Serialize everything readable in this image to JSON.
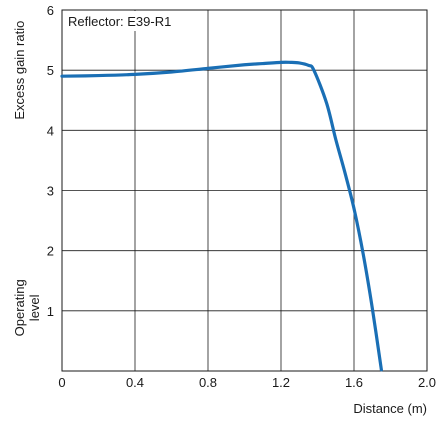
{
  "chart_data": {
    "type": "line",
    "title": "",
    "xlabel": "Distance (m)",
    "ylabel": "Excess gain ratio",
    "xlim": [
      0,
      2.0
    ],
    "ylim": [
      0,
      6
    ],
    "x_ticks": [
      "0",
      "0.4",
      "0.8",
      "1.2",
      "1.6",
      "2.0"
    ],
    "y_ticks": [
      "1",
      "2",
      "3",
      "4",
      "5",
      "6"
    ],
    "grid": true,
    "legend_box": "Reflector: E39-R1",
    "annotation": [
      "Operating",
      "level"
    ],
    "series": [
      {
        "color": "#1a6fb5",
        "x": [
          0,
          0.2,
          0.4,
          0.6,
          0.8,
          1.0,
          1.1,
          1.2,
          1.25,
          1.3,
          1.35,
          1.38,
          1.45,
          1.5,
          1.55,
          1.6,
          1.65,
          1.7,
          1.75
        ],
        "y": [
          4.9,
          4.91,
          4.93,
          4.97,
          5.03,
          5.09,
          5.11,
          5.13,
          5.13,
          5.12,
          5.08,
          5.0,
          4.45,
          3.85,
          3.3,
          2.7,
          1.95,
          1.05,
          0.02
        ]
      }
    ]
  }
}
